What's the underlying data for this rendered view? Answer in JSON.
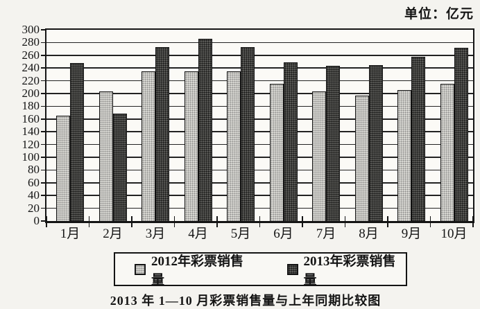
{
  "page": {
    "unit_label": "单位：亿元",
    "caption": "2013 年 1—10 月彩票销售量与上年同期比较图"
  },
  "legend": {
    "items": [
      {
        "label": "2012年彩票销售量",
        "swatch": "light-gray-dotted",
        "color": "#deddd8"
      },
      {
        "label": "2013年彩票销售量",
        "swatch": "dark-gray-dotted",
        "color": "#59595"
      }
    ]
  },
  "chart_data": {
    "type": "bar",
    "title": "2013 年 1—10 月彩票销售量与上年同期比较图",
    "unit": "亿元",
    "categories": [
      "1月",
      "2月",
      "3月",
      "4月",
      "5月",
      "6月",
      "7月",
      "8月",
      "9月",
      "10月"
    ],
    "series": [
      {
        "name": "2012年彩票销售量",
        "values": [
          165,
          203,
          235,
          235,
          235,
          215,
          203,
          197,
          205,
          215
        ]
      },
      {
        "name": "2013年彩票销售量",
        "values": [
          248,
          168,
          273,
          286,
          273,
          249,
          243,
          245,
          258,
          272
        ]
      }
    ],
    "xlabel": "",
    "ylabel": "",
    "ylim": [
      0,
      300
    ],
    "yticks": [
      0,
      20,
      40,
      60,
      80,
      100,
      120,
      140,
      160,
      180,
      200,
      220,
      240,
      260,
      280,
      300
    ],
    "grid": true,
    "legend_position": "bottom"
  },
  "colors": {
    "series_2012_fill": "#deddd8",
    "series_2013_fill": "#6b6b67",
    "axis": "#141414",
    "background": "#f4f3ef"
  }
}
